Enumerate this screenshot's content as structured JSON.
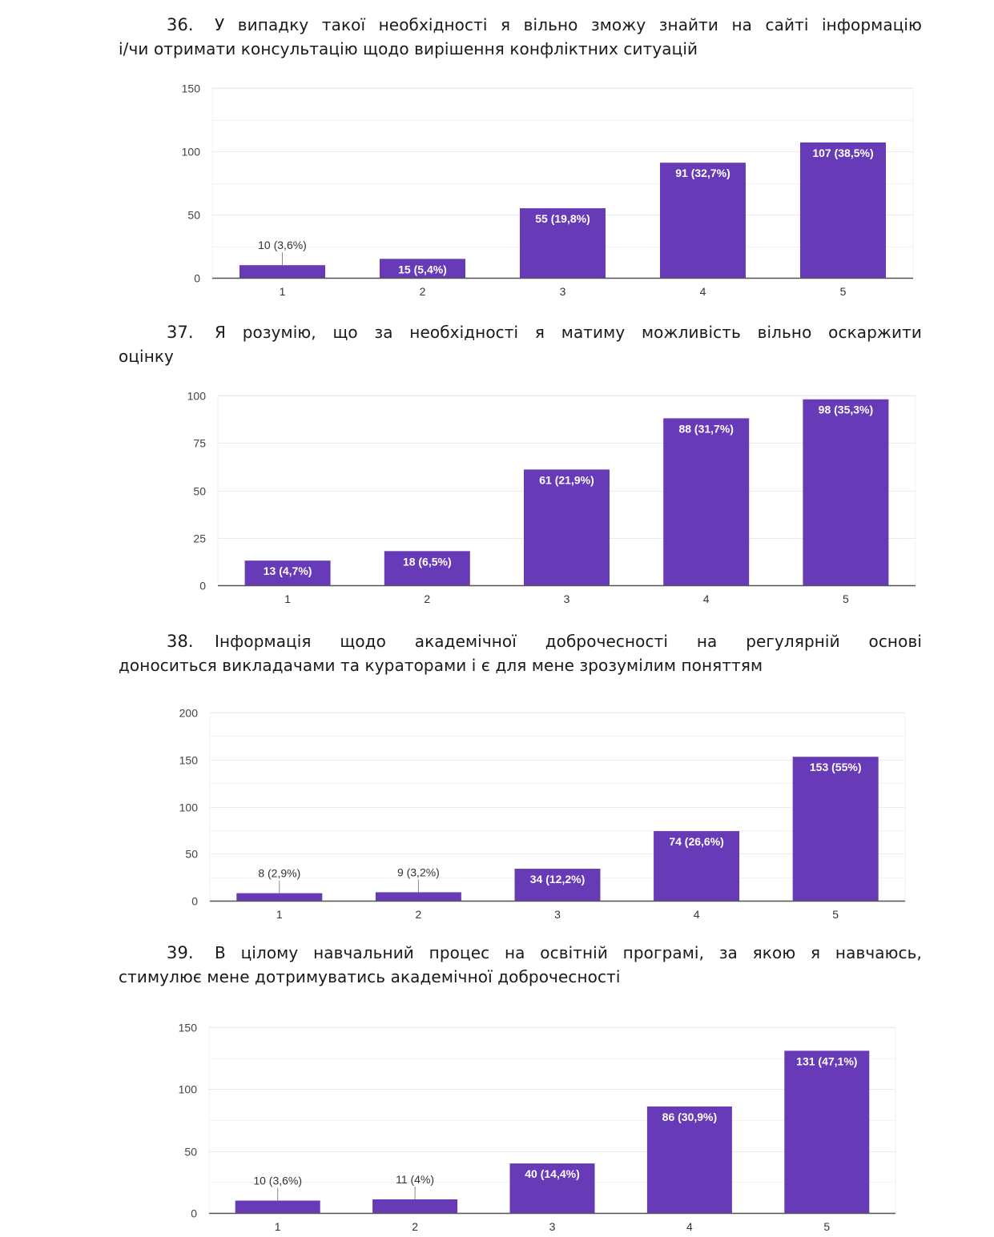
{
  "questions": [
    {
      "number": "36.",
      "line1": "У випадку такої необхідності я вільно зможу знайти на сайті інформацію",
      "line2": "і/чи отримати консультацію щодо вирішення конфліктних ситуацій"
    },
    {
      "number": "37.",
      "line1": "Я розумію, що за необхідності я матиму можливість вільно оскаржити",
      "line2": "оцінку"
    },
    {
      "number": "38.",
      "line1": "Інформація щодо академічної доброчесності на регулярній основі",
      "line2": "доноситься викладачами та кураторами і є для мене зрозумілим поняттям"
    },
    {
      "number": "39.",
      "line1": "В цілому навчальний процес на освітній програмі, за якою я навчаюсь,",
      "line2": "стимулює мене дотримуватись академічної доброчесності"
    }
  ],
  "bar_color": "#673AB7",
  "chart_data": [
    {
      "type": "bar",
      "title": "36. У випадку такої необхідності я вільно зможу знайти на сайті інформацію і/чи отримати консультацію щодо вирішення конфліктних ситуацій",
      "categories": [
        "1",
        "2",
        "3",
        "4",
        "5"
      ],
      "values": [
        10,
        15,
        55,
        91,
        107
      ],
      "data_labels": [
        "10 (3,6%)",
        "15 (5,4%)",
        "55 (19,8%)",
        "91 (32,7%)",
        "107 (38,5%)"
      ],
      "yticks": [
        0,
        50,
        100,
        150
      ],
      "ylim": [
        0,
        150
      ],
      "minor_gridlines": true,
      "xlabel": "",
      "ylabel": "",
      "grid": true
    },
    {
      "type": "bar",
      "title": "37. Я розумію, що за необхідності я матиму можливість вільно оскаржити оцінку",
      "categories": [
        "1",
        "2",
        "3",
        "4",
        "5"
      ],
      "values": [
        13,
        18,
        61,
        88,
        98
      ],
      "data_labels": [
        "13 (4,7%)",
        "18 (6,5%)",
        "61 (21,9%)",
        "88 (31,7%)",
        "98 (35,3%)"
      ],
      "yticks": [
        0,
        25,
        50,
        75,
        100
      ],
      "ylim": [
        0,
        100
      ],
      "minor_gridlines": false,
      "xlabel": "",
      "ylabel": "",
      "grid": true
    },
    {
      "type": "bar",
      "title": "38. Інформація щодо академічної доброчесності на регулярній основі доноситься викладачами та кураторами і є для мене зрозумілим поняттям",
      "categories": [
        "1",
        "2",
        "3",
        "4",
        "5"
      ],
      "values": [
        8,
        9,
        34,
        74,
        153
      ],
      "data_labels": [
        "8 (2,9%)",
        "9 (3,2%)",
        "34 (12,2%)",
        "74 (26,6%)",
        "153 (55%)"
      ],
      "yticks": [
        0,
        50,
        100,
        150,
        200
      ],
      "ylim": [
        0,
        200
      ],
      "minor_gridlines": true,
      "xlabel": "",
      "ylabel": "",
      "grid": true
    },
    {
      "type": "bar",
      "title": "39. В цілому навчальний процес на освітній програмі, за якою я навчаюсь, стимулює мене дотримуватись академічної доброчесності",
      "categories": [
        "1",
        "2",
        "3",
        "4",
        "5"
      ],
      "values": [
        10,
        11,
        40,
        86,
        131
      ],
      "data_labels": [
        "10 (3,6%)",
        "11 (4%)",
        "40 (14,4%)",
        "86 (30,9%)",
        "131 (47,1%)"
      ],
      "yticks": [
        0,
        50,
        100,
        150
      ],
      "ylim": [
        0,
        150
      ],
      "minor_gridlines": true,
      "xlabel": "",
      "ylabel": "",
      "grid": true
    }
  ]
}
